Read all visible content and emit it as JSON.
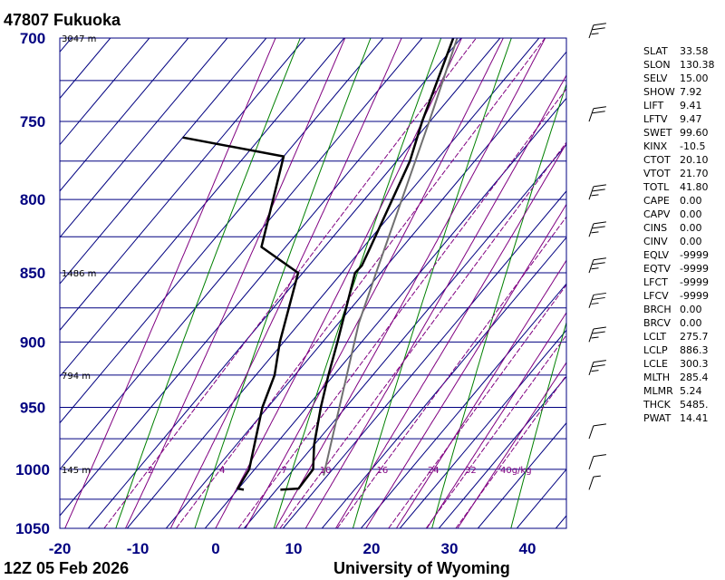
{
  "station": "47807  Fukuoka",
  "footer": {
    "time": "12Z 05 Feb 2026",
    "source": "University of Wyoming"
  },
  "colors": {
    "isotherm": "#000080",
    "dry_adiabat": "#008000",
    "moist_adiabat": "#800080",
    "mixing_ratio": "#800080",
    "axis_label": "#000080",
    "profile": "#000000",
    "parcel": "#707070"
  },
  "indices": [
    {
      "name": "SLAT",
      "value": "33.58"
    },
    {
      "name": "SLON",
      "value": "130.38"
    },
    {
      "name": "SELV",
      "value": "15.00"
    },
    {
      "name": "SHOW",
      "value": "7.92"
    },
    {
      "name": "LIFT",
      "value": "9.41"
    },
    {
      "name": "LFTV",
      "value": "9.47"
    },
    {
      "name": "SWET",
      "value": "99.60"
    },
    {
      "name": "KINX",
      "value": "-10.5"
    },
    {
      "name": "CTOT",
      "value": "20.10"
    },
    {
      "name": "VTOT",
      "value": "21.70"
    },
    {
      "name": "TOTL",
      "value": "41.80"
    },
    {
      "name": "CAPE",
      "value": "0.00"
    },
    {
      "name": "CAPV",
      "value": "0.00"
    },
    {
      "name": "CINS",
      "value": "0.00"
    },
    {
      "name": "CINV",
      "value": "0.00"
    },
    {
      "name": "EQLV",
      "value": "-9999"
    },
    {
      "name": "EQTV",
      "value": "-9999"
    },
    {
      "name": "LFCT",
      "value": "-9999"
    },
    {
      "name": "LFCV",
      "value": "-9999"
    },
    {
      "name": "BRCH",
      "value": "0.00"
    },
    {
      "name": "BRCV",
      "value": "0.00"
    },
    {
      "name": "LCLT",
      "value": "275.7"
    },
    {
      "name": "LCLP",
      "value": "886.3"
    },
    {
      "name": "LCLE",
      "value": "300.3"
    },
    {
      "name": "MLTH",
      "value": "285.4"
    },
    {
      "name": "MLMR",
      "value": "5.24"
    },
    {
      "name": "THCK",
      "value": "5485."
    },
    {
      "name": "PWAT",
      "value": "14.41"
    }
  ],
  "chart_data": {
    "type": "line",
    "title": "47807  Fukuoka",
    "xlabel": "",
    "ylabel": "",
    "x_axis": "Temperature (C), skewed",
    "xlim": [
      -20,
      45
    ],
    "ylim": [
      1050,
      700
    ],
    "log_scale_y": true,
    "grid": true,
    "x_ticks": [
      -20,
      -10,
      0,
      10,
      20,
      30,
      40
    ],
    "y_ticks": [
      700,
      750,
      800,
      850,
      900,
      950,
      1000,
      1050
    ],
    "height_labels": [
      {
        "pressure": 700,
        "label": "3047 m"
      },
      {
        "pressure": 850,
        "label": "1486 m"
      },
      {
        "pressure": 925,
        "label": "794 m"
      },
      {
        "pressure": 1000,
        "label": "145 m"
      }
    ],
    "mixing_ratio_labels": [
      "2",
      "4",
      "7",
      "10",
      "16",
      "24",
      "32",
      "40g/kg"
    ],
    "mixing_ratio_values": [
      2,
      4,
      7,
      10,
      16,
      24,
      32,
      40
    ],
    "series": [
      {
        "name": "",
        "role": "temperature",
        "points": [
          {
            "p": 1017,
            "t": 10.5
          },
          {
            "p": 1016,
            "t": 12.7
          },
          {
            "p": 1000,
            "t": 12.5
          },
          {
            "p": 980,
            "t": 10.0
          },
          {
            "p": 950,
            "t": 6.8
          },
          {
            "p": 925,
            "t": 4.3
          },
          {
            "p": 900,
            "t": 1.9
          },
          {
            "p": 850,
            "t": -3.3
          },
          {
            "p": 845,
            "t": -3.2
          },
          {
            "p": 832,
            "t": -4.1
          },
          {
            "p": 775,
            "t": -8.3
          },
          {
            "p": 750,
            "t": -11.0
          },
          {
            "p": 700,
            "t": -16.0
          }
        ]
      },
      {
        "name": "",
        "role": "dewpoint",
        "points": [
          {
            "p": 1017,
            "t": 5.8
          },
          {
            "p": 1016,
            "t": 4.9
          },
          {
            "p": 1000,
            "t": 4.3
          },
          {
            "p": 950,
            "t": -0.7
          },
          {
            "p": 925,
            "t": -2.6
          },
          {
            "p": 900,
            "t": -5.5
          },
          {
            "p": 850,
            "t": -10.6
          },
          {
            "p": 832,
            "t": -18.1
          },
          {
            "p": 772,
            "t": -25.0
          },
          {
            "p": 760,
            "t": -40.0
          }
        ]
      },
      {
        "name": "",
        "role": "parcel",
        "points": [
          {
            "p": 1005,
            "t": 14.5
          },
          {
            "p": 886,
            "t": 2.6
          },
          {
            "p": 850,
            "t": -0.6
          },
          {
            "p": 800,
            "t": -5.2
          },
          {
            "p": 750,
            "t": -10.1
          },
          {
            "p": 700,
            "t": -15.5
          }
        ]
      }
    ],
    "wind_barbs": [
      {
        "p": 1017,
        "speed_kt": 5
      },
      {
        "p": 1000,
        "speed_kt": 10
      },
      {
        "p": 975,
        "speed_kt": 10
      },
      {
        "p": 925,
        "speed_kt": 25
      },
      {
        "p": 900,
        "speed_kt": 25
      },
      {
        "p": 875,
        "speed_kt": 25
      },
      {
        "p": 850,
        "speed_kt": 25
      },
      {
        "p": 825,
        "speed_kt": 25
      },
      {
        "p": 800,
        "speed_kt": 25
      },
      {
        "p": 750,
        "speed_kt": 20
      },
      {
        "p": 700,
        "speed_kt": 25
      }
    ]
  }
}
